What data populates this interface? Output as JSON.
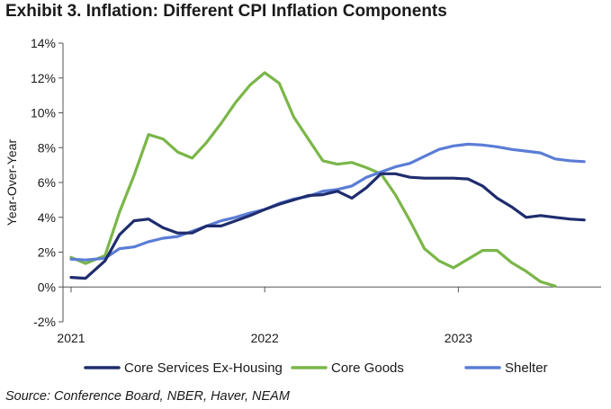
{
  "page": {
    "title": "Exhibit 3. Inflation: Different CPI Inflation Components",
    "source": "Source: Conference Board, NBER, Haver, NEAM"
  },
  "chart_data": {
    "type": "line",
    "title": "Exhibit 3. Inflation: Different CPI Inflation Components",
    "xlabel": "",
    "ylabel": "Year-Over-Year",
    "x": [
      0,
      1,
      2,
      3,
      4,
      5,
      6,
      7,
      8,
      9,
      10,
      11,
      12,
      13,
      14,
      15,
      16,
      17,
      18,
      19,
      20,
      21,
      22,
      23,
      24,
      25,
      26,
      27,
      28,
      29,
      30,
      31,
      32,
      33,
      34,
      35,
      36,
      37,
      38,
      39,
      40,
      41,
      42,
      43,
      44,
      45,
      46,
      47,
      48,
      49,
      50,
      51,
      52,
      53
    ],
    "x_ticks": [
      {
        "value": 0,
        "label": "2021"
      },
      {
        "value": 20,
        "label": "2022"
      },
      {
        "value": 40,
        "label": "2023"
      }
    ],
    "ylim": [
      -2,
      14
    ],
    "y_ticks": [
      "-2%",
      "0%",
      "2%",
      "4%",
      "6%",
      "8%",
      "10%",
      "12%",
      "14%"
    ],
    "y_tick_values": [
      -2,
      0,
      2,
      4,
      6,
      8,
      10,
      12,
      14
    ],
    "grid": false,
    "legend_position": "bottom",
    "series": [
      {
        "name": "Core Services Ex-Housing",
        "color": "#1f2d6e",
        "points": [
          [
            0,
            0.55
          ],
          [
            1.5,
            0.5
          ],
          [
            3.5,
            1.5
          ],
          [
            5,
            3.0
          ],
          [
            6.5,
            3.8
          ],
          [
            8,
            3.9
          ],
          [
            9.5,
            3.4
          ],
          [
            11,
            3.1
          ],
          [
            12.5,
            3.1
          ],
          [
            14,
            3.5
          ],
          [
            15.5,
            3.5
          ],
          [
            17,
            3.8
          ],
          [
            18.5,
            4.1
          ],
          [
            20,
            4.45
          ],
          [
            21.5,
            4.75
          ],
          [
            23,
            5.0
          ],
          [
            24.5,
            5.25
          ],
          [
            26,
            5.3
          ],
          [
            27.5,
            5.5
          ],
          [
            29,
            5.1
          ],
          [
            30.5,
            5.7
          ],
          [
            32,
            6.5
          ],
          [
            33.5,
            6.5
          ],
          [
            35,
            6.3
          ],
          [
            36.5,
            6.25
          ],
          [
            38,
            6.25
          ],
          [
            39.5,
            6.25
          ],
          [
            41,
            6.2
          ],
          [
            42.5,
            5.8
          ],
          [
            44,
            5.1
          ],
          [
            45.5,
            4.6
          ],
          [
            47,
            4.0
          ],
          [
            48.5,
            4.1
          ],
          [
            50,
            4.0
          ],
          [
            51.5,
            3.9
          ],
          [
            53,
            3.85
          ]
        ]
      },
      {
        "name": "Core Goods",
        "color": "#7ab648",
        "points": [
          [
            0,
            1.7
          ],
          [
            1.5,
            1.35
          ],
          [
            3.5,
            1.8
          ],
          [
            5,
            4.3
          ],
          [
            6.5,
            6.4
          ],
          [
            8,
            8.75
          ],
          [
            9.5,
            8.5
          ],
          [
            11,
            7.75
          ],
          [
            12.5,
            7.4
          ],
          [
            14,
            8.3
          ],
          [
            15.5,
            9.4
          ],
          [
            17,
            10.6
          ],
          [
            18.5,
            11.6
          ],
          [
            20,
            12.3
          ],
          [
            21.5,
            11.7
          ],
          [
            23,
            9.75
          ],
          [
            24.5,
            8.5
          ],
          [
            26,
            7.25
          ],
          [
            27.5,
            7.05
          ],
          [
            29,
            7.15
          ],
          [
            30.5,
            6.85
          ],
          [
            32,
            6.5
          ],
          [
            33.5,
            5.3
          ],
          [
            35,
            3.8
          ],
          [
            36.5,
            2.2
          ],
          [
            38,
            1.5
          ],
          [
            39.5,
            1.1
          ],
          [
            41,
            1.6
          ],
          [
            42.5,
            2.1
          ],
          [
            44,
            2.1
          ],
          [
            45.5,
            1.4
          ],
          [
            47,
            0.9
          ],
          [
            48.5,
            0.3
          ],
          [
            50,
            0.05
          ]
        ]
      },
      {
        "name": "Shelter",
        "color": "#5b7dd6",
        "points": [
          [
            0,
            1.6
          ],
          [
            1.5,
            1.55
          ],
          [
            3.5,
            1.65
          ],
          [
            5,
            2.2
          ],
          [
            6.5,
            2.3
          ],
          [
            8,
            2.6
          ],
          [
            9.5,
            2.8
          ],
          [
            11,
            2.9
          ],
          [
            12.5,
            3.2
          ],
          [
            14,
            3.5
          ],
          [
            15.5,
            3.8
          ],
          [
            17,
            4.0
          ],
          [
            18.5,
            4.25
          ],
          [
            20,
            4.45
          ],
          [
            21.5,
            4.8
          ],
          [
            23,
            5.05
          ],
          [
            24.5,
            5.2
          ],
          [
            26,
            5.5
          ],
          [
            27.5,
            5.6
          ],
          [
            29,
            5.8
          ],
          [
            30.5,
            6.3
          ],
          [
            32,
            6.6
          ],
          [
            33.5,
            6.9
          ],
          [
            35,
            7.1
          ],
          [
            36.5,
            7.5
          ],
          [
            38,
            7.9
          ],
          [
            39.5,
            8.1
          ],
          [
            41,
            8.2
          ],
          [
            42.5,
            8.15
          ],
          [
            44,
            8.05
          ],
          [
            45.5,
            7.9
          ],
          [
            47,
            7.8
          ],
          [
            48.5,
            7.7
          ],
          [
            50,
            7.35
          ],
          [
            51.5,
            7.25
          ],
          [
            53,
            7.2
          ]
        ]
      }
    ]
  }
}
